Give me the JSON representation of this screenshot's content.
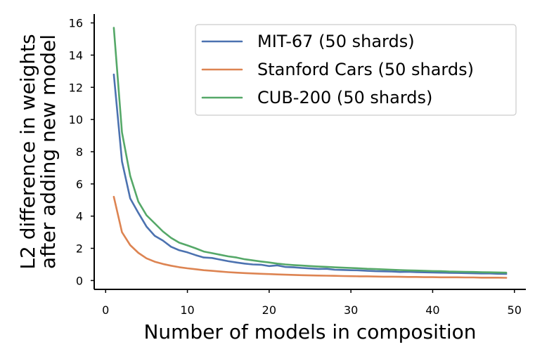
{
  "chart_data": {
    "type": "line",
    "title": "",
    "xlabel": "Number of models in composition",
    "ylabel_lines": [
      "L2 difference in weights",
      "after adding new model"
    ],
    "xlim": [
      -1.4,
      51.4
    ],
    "ylim": [
      -0.55,
      16.55
    ],
    "xticks": [
      0,
      10,
      20,
      30,
      40,
      50
    ],
    "yticks": [
      0,
      2,
      4,
      6,
      8,
      10,
      12,
      14,
      16
    ],
    "grid": false,
    "legend_position": "upper-right",
    "x": [
      1,
      2,
      3,
      4,
      5,
      6,
      7,
      8,
      9,
      10,
      11,
      12,
      13,
      14,
      15,
      16,
      17,
      18,
      19,
      20,
      21,
      22,
      23,
      24,
      25,
      26,
      27,
      28,
      29,
      30,
      31,
      32,
      33,
      34,
      35,
      36,
      37,
      38,
      39,
      40,
      41,
      42,
      43,
      44,
      45,
      46,
      47,
      48,
      49
    ],
    "series": [
      {
        "name": "MIT-67 (50 shards)",
        "color": "#4c72b0",
        "values": [
          12.8,
          7.4,
          5.1,
          4.2,
          3.35,
          2.78,
          2.48,
          2.1,
          1.88,
          1.75,
          1.58,
          1.43,
          1.4,
          1.3,
          1.2,
          1.12,
          1.05,
          1.0,
          0.98,
          0.9,
          0.94,
          0.84,
          0.82,
          0.78,
          0.75,
          0.72,
          0.73,
          0.67,
          0.66,
          0.64,
          0.63,
          0.6,
          0.58,
          0.57,
          0.56,
          0.53,
          0.54,
          0.52,
          0.51,
          0.5,
          0.49,
          0.48,
          0.47,
          0.46,
          0.45,
          0.44,
          0.44,
          0.42,
          0.41
        ]
      },
      {
        "name": "Stanford Cars (50 shards)",
        "color": "#dd8452",
        "values": [
          5.2,
          3.0,
          2.2,
          1.72,
          1.38,
          1.17,
          1.03,
          0.92,
          0.83,
          0.76,
          0.7,
          0.64,
          0.6,
          0.56,
          0.52,
          0.49,
          0.46,
          0.44,
          0.42,
          0.4,
          0.38,
          0.36,
          0.35,
          0.33,
          0.32,
          0.31,
          0.3,
          0.29,
          0.28,
          0.27,
          0.26,
          0.26,
          0.25,
          0.24,
          0.24,
          0.23,
          0.22,
          0.22,
          0.21,
          0.21,
          0.2,
          0.2,
          0.2,
          0.19,
          0.19,
          0.18,
          0.18,
          0.18,
          0.17
        ]
      },
      {
        "name": "CUB-200 (50 shards)",
        "color": "#55a868",
        "values": [
          15.7,
          9.2,
          6.5,
          4.9,
          4.05,
          3.55,
          3.05,
          2.65,
          2.35,
          2.18,
          2.0,
          1.8,
          1.7,
          1.6,
          1.5,
          1.43,
          1.32,
          1.25,
          1.18,
          1.12,
          1.05,
          1.0,
          0.96,
          0.93,
          0.9,
          0.87,
          0.85,
          0.82,
          0.8,
          0.78,
          0.76,
          0.73,
          0.71,
          0.69,
          0.67,
          0.65,
          0.63,
          0.62,
          0.6,
          0.59,
          0.58,
          0.56,
          0.55,
          0.54,
          0.53,
          0.52,
          0.51,
          0.5,
          0.49
        ]
      }
    ]
  }
}
